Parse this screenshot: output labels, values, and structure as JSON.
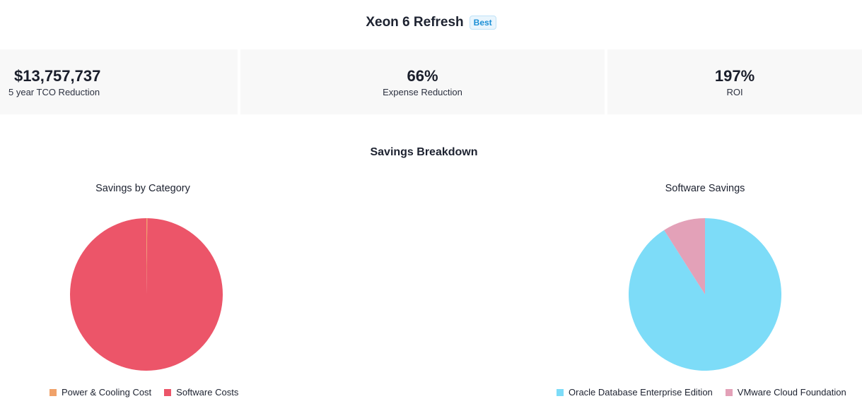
{
  "header": {
    "title": "Xeon 6 Refresh",
    "badge": "Best"
  },
  "metrics": [
    {
      "value": "$13,757,737",
      "label": "5 year TCO Reduction"
    },
    {
      "value": "66%",
      "label": "Expense Reduction"
    },
    {
      "value": "197%",
      "label": "ROI"
    }
  ],
  "section_title": "Savings Breakdown",
  "colors": {
    "power_cooling": "#f0a26a",
    "software_costs": "#ec5569",
    "oracle": "#7ddcf8",
    "vmware": "#e3a1b8"
  },
  "chart_data": [
    {
      "type": "pie",
      "title": "Savings by Category",
      "labels": [
        "Power & Cooling Cost",
        "Software Costs"
      ],
      "values": [
        0.2,
        99.8
      ],
      "colors": [
        "#f0a26a",
        "#ec5569"
      ],
      "legend_position": "bottom"
    },
    {
      "type": "pie",
      "title": "Software Savings",
      "labels": [
        "Oracle Database Enterprise Edition",
        "VMware Cloud Foundation"
      ],
      "values": [
        91,
        9
      ],
      "colors": [
        "#7ddcf8",
        "#e3a1b8"
      ],
      "legend_position": "bottom"
    }
  ]
}
